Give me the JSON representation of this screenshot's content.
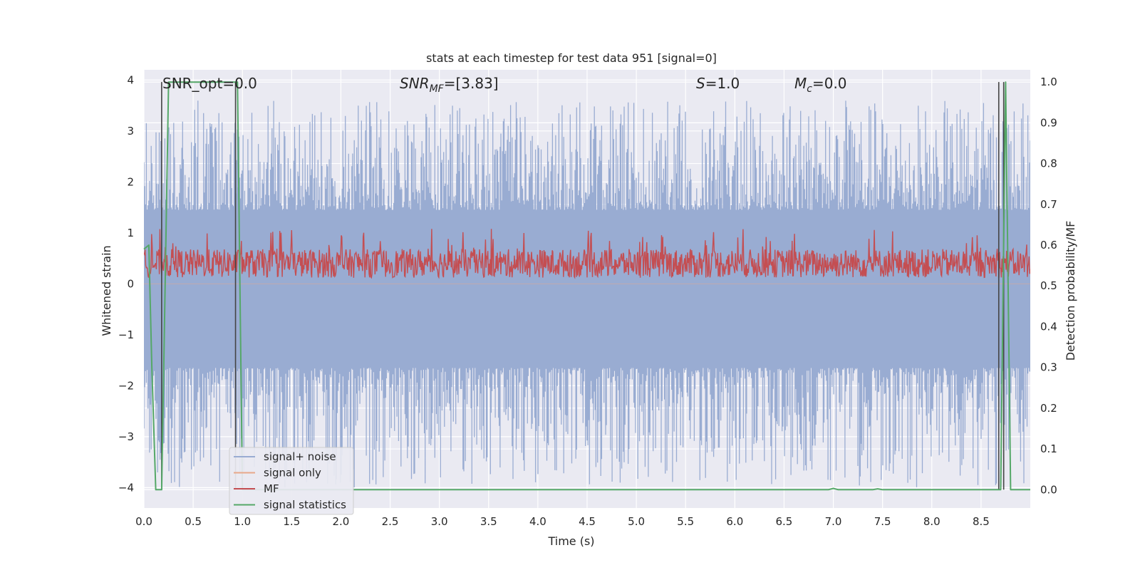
{
  "chart_data": {
    "type": "line",
    "title": "stats at each timestep for test data 951 [signal=0]",
    "xlabel": "Time (s)",
    "ylabel_left": "Whitened strain",
    "ylabel_right": "Detection probability/MF",
    "xlim": [
      0.0,
      9.0
    ],
    "ylim_left": [
      -4.4,
      4.2
    ],
    "ylim_right": [
      -0.045,
      1.03
    ],
    "x_ticks": [
      "0.0",
      "0.5",
      "1.0",
      "1.5",
      "2.0",
      "2.5",
      "3.0",
      "3.5",
      "4.0",
      "4.5",
      "5.0",
      "5.5",
      "6.0",
      "6.5",
      "7.0",
      "7.5",
      "8.0",
      "8.5"
    ],
    "x_tick_values": [
      0.0,
      0.5,
      1.0,
      1.5,
      2.0,
      2.5,
      3.0,
      3.5,
      4.0,
      4.5,
      5.0,
      5.5,
      6.0,
      6.5,
      7.0,
      7.5,
      8.0,
      8.5
    ],
    "y_left_ticks": [
      "−4",
      "−3",
      "−2",
      "−1",
      "0",
      "1",
      "2",
      "3",
      "4"
    ],
    "y_left_tick_values": [
      -4,
      -3,
      -2,
      -1,
      0,
      1,
      2,
      3,
      4
    ],
    "y_right_ticks": [
      "0.0",
      "0.1",
      "0.2",
      "0.3",
      "0.4",
      "0.5",
      "0.6",
      "0.7",
      "0.8",
      "0.9",
      "1.0"
    ],
    "y_right_tick_values": [
      0.0,
      0.1,
      0.2,
      0.3,
      0.4,
      0.5,
      0.6,
      0.7,
      0.8,
      0.9,
      1.0
    ],
    "grid": true,
    "legend_placement": "lower-left",
    "colors": {
      "background": "#eaeaf2",
      "grid": "#ffffff",
      "signal_noise": "#99acd2",
      "signal_only": "#e8a88a",
      "mf": "#c44e52",
      "signal_statistics": "#55a868",
      "vline": "#444444"
    },
    "annotations": [
      {
        "key": "snr_opt",
        "text": "SNR_opt=0.0"
      },
      {
        "key": "snr_mf",
        "text": "SNR",
        "sub": "MF",
        "rest": "=[3.83]"
      },
      {
        "key": "s_val",
        "text": "S",
        "rest": "=1.0"
      },
      {
        "key": "mc_val",
        "text": "M",
        "sub": "c",
        "rest": "=0.0"
      }
    ],
    "series": [
      {
        "name": "signal+ noise",
        "kind": "noise",
        "band_low": -1.65,
        "band_high": 1.45,
        "spike_max": 3.6,
        "spike_min": -4.0
      },
      {
        "name": "signal only",
        "kind": "flat",
        "value": 0.0
      },
      {
        "name": "MF",
        "kind": "mf",
        "axis": "right",
        "band_low": 0.52,
        "band_high": 0.59,
        "spike_max": 0.64
      },
      {
        "name": "signal statistics",
        "kind": "step",
        "axis": "right",
        "x": [
          0.0,
          0.05,
          0.08,
          0.12,
          0.18,
          0.25,
          0.95,
          1.0,
          1.05,
          6.95,
          7.0,
          7.05,
          7.4,
          7.45,
          7.5,
          8.7,
          8.75,
          8.8,
          9.0
        ],
        "y": [
          0.59,
          0.6,
          0.3,
          0.0,
          0.0,
          1.0,
          1.0,
          0.0,
          0.0,
          0.0,
          0.003,
          0.0,
          0.0,
          0.002,
          0.0,
          0.0,
          1.0,
          0.0,
          0.0
        ]
      }
    ],
    "vlines": [
      0.18,
      0.93,
      8.68,
      8.73
    ]
  }
}
